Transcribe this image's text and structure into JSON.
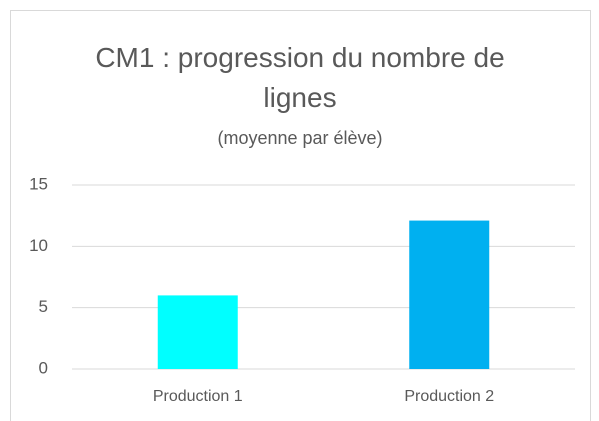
{
  "chart_data": {
    "type": "bar",
    "title": "CM1 : progression du nombre de lignes",
    "subtitle": "(moyenne par élève)",
    "categories": [
      "Production 1",
      "Production 2"
    ],
    "values": [
      6,
      12.1
    ],
    "colors": [
      "#00ffff",
      "#00b0f0"
    ],
    "ylim": [
      0,
      15
    ],
    "yticks": [
      0,
      5,
      10,
      15
    ],
    "grid": true
  }
}
